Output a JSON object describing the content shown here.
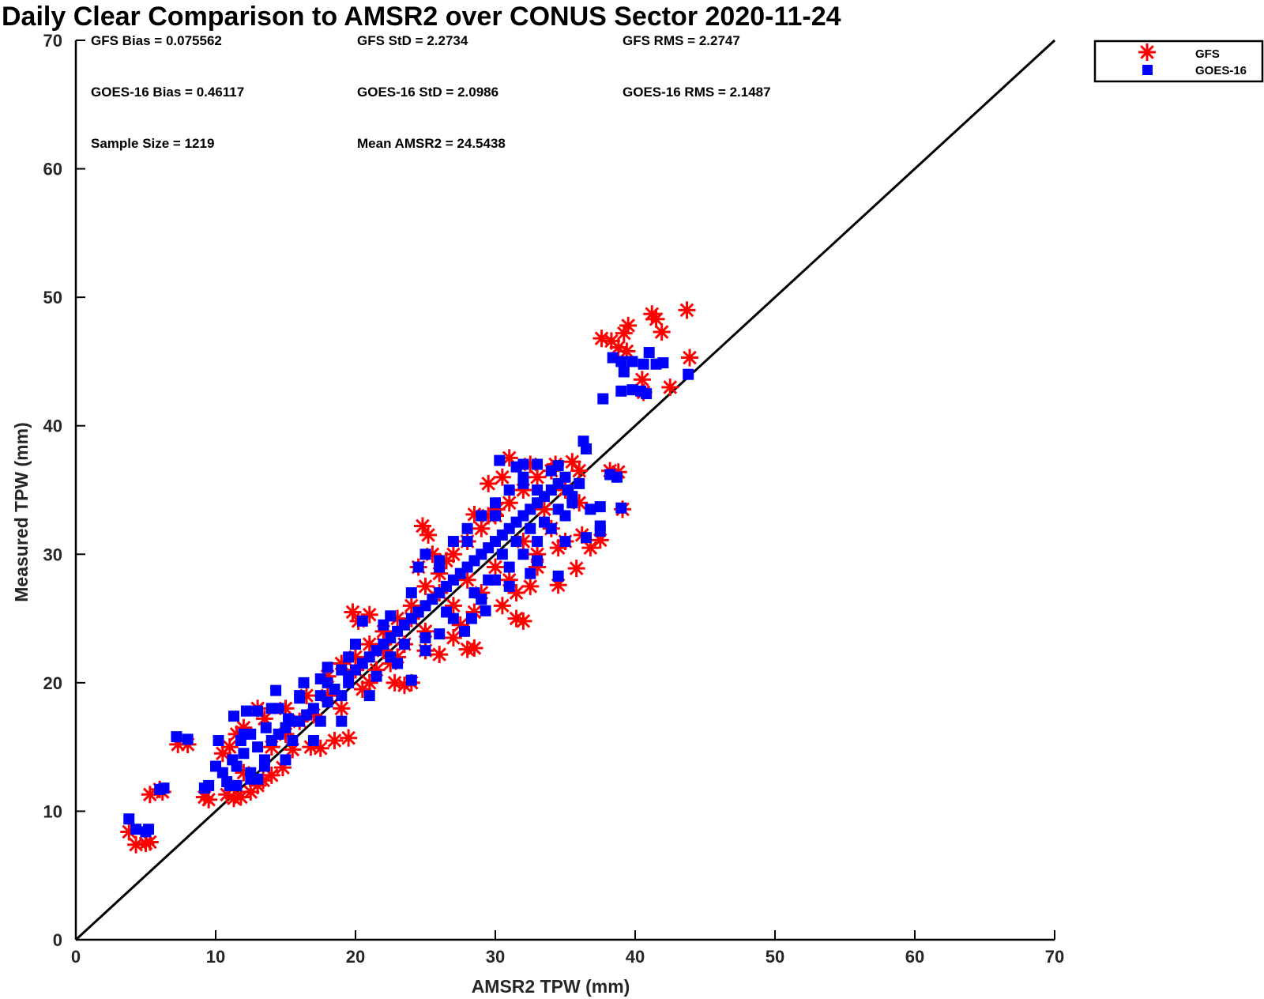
{
  "chart_data": {
    "type": "scatter",
    "title": "Daily Clear Comparison to AMSR2 over CONUS Sector 2020-11-24",
    "xlabel": "AMSR2 TPW (mm)",
    "ylabel": "Measured TPW (mm)",
    "xlim": [
      0,
      70
    ],
    "ylim": [
      0,
      70
    ],
    "xticks": [
      0,
      10,
      20,
      30,
      40,
      50,
      60,
      70
    ],
    "yticks": [
      0,
      10,
      20,
      30,
      40,
      50,
      60,
      70
    ],
    "grid": false,
    "legend_position": "top-right-outside",
    "reference_line": "y = x",
    "stats": [
      {
        "id": "gfs-bias",
        "text": "GFS Bias = 0.075562"
      },
      {
        "id": "gfs-std",
        "text": "GFS StD = 2.2734"
      },
      {
        "id": "gfs-rms",
        "text": "GFS RMS = 2.2747"
      },
      {
        "id": "goes-bias",
        "text": "GOES-16 Bias = 0.46117"
      },
      {
        "id": "goes-std",
        "text": "GOES-16 StD = 2.0986"
      },
      {
        "id": "goes-rms",
        "text": "GOES-16 RMS = 2.1487"
      },
      {
        "id": "sample-size",
        "text": "Sample Size = 1219"
      },
      {
        "id": "mean-amsr2",
        "text": "Mean AMSR2 = 24.5438"
      }
    ],
    "series": [
      {
        "name": "GFS",
        "marker": "asterisk",
        "color": "#ff0000",
        "points": [
          [
            3.8,
            8.4
          ],
          [
            4.3,
            7.4
          ],
          [
            5,
            7.5
          ],
          [
            5.3,
            7.6
          ],
          [
            5.3,
            11.3
          ],
          [
            6,
            11.7
          ],
          [
            6.2,
            11.5
          ],
          [
            7.3,
            15.2
          ],
          [
            8,
            15.2
          ],
          [
            9.2,
            11.1
          ],
          [
            9.5,
            10.9
          ],
          [
            10.8,
            11.3
          ],
          [
            11.3,
            11
          ],
          [
            11.8,
            11.1
          ],
          [
            12.5,
            11.5
          ],
          [
            13,
            12
          ],
          [
            13.4,
            12.4
          ],
          [
            14,
            12.8
          ],
          [
            14.8,
            13.4
          ],
          [
            15.5,
            14.8
          ],
          [
            16.8,
            15
          ],
          [
            17.5,
            14.9
          ],
          [
            18.5,
            15.5
          ],
          [
            19.5,
            15.7
          ],
          [
            19.8,
            25.5
          ],
          [
            20.2,
            24.8
          ],
          [
            21,
            25.3
          ],
          [
            22,
            22.5
          ],
          [
            22.8,
            20
          ],
          [
            23.5,
            19.8
          ],
          [
            24,
            20
          ],
          [
            24.8,
            32.2
          ],
          [
            25.2,
            31.5
          ],
          [
            25,
            22.5
          ],
          [
            26,
            22.2
          ],
          [
            27,
            23.5
          ],
          [
            28,
            22.6
          ],
          [
            28.5,
            22.7
          ],
          [
            28.5,
            33.1
          ],
          [
            29.5,
            33
          ],
          [
            30.1,
            33.5
          ],
          [
            31,
            37.5
          ],
          [
            31.5,
            25
          ],
          [
            32,
            24.8
          ],
          [
            32.5,
            27.5
          ],
          [
            34.5,
            27.6
          ],
          [
            34.3,
            37
          ],
          [
            35.5,
            37.2
          ],
          [
            35.8,
            28.9
          ],
          [
            36.2,
            31.5
          ],
          [
            36.8,
            30.5
          ],
          [
            37.5,
            31.1
          ],
          [
            38.2,
            36.5
          ],
          [
            38.8,
            36.4
          ],
          [
            39.1,
            33.5
          ],
          [
            37.6,
            46.8
          ],
          [
            38.3,
            46.6
          ],
          [
            38.8,
            46.1
          ],
          [
            39.2,
            47.2
          ],
          [
            39.5,
            47.8
          ],
          [
            39.4,
            45.8
          ],
          [
            40.5,
            43.6
          ],
          [
            40.6,
            42.6
          ],
          [
            41.2,
            48.7
          ],
          [
            41.5,
            48.3
          ],
          [
            41.9,
            47.3
          ],
          [
            42.5,
            43
          ],
          [
            43.7,
            49
          ],
          [
            43.9,
            45.3
          ],
          [
            10.5,
            14.5
          ],
          [
            11,
            15
          ],
          [
            12,
            16.5
          ],
          [
            13.5,
            17.2
          ],
          [
            15,
            18
          ],
          [
            16.5,
            19
          ],
          [
            18,
            20.5
          ],
          [
            19,
            21.5
          ],
          [
            20,
            22
          ],
          [
            21,
            23
          ],
          [
            22,
            24
          ],
          [
            23,
            25
          ],
          [
            24,
            26
          ],
          [
            25,
            27.5
          ],
          [
            26,
            28.5
          ],
          [
            27,
            30
          ],
          [
            28,
            31
          ],
          [
            29,
            32
          ],
          [
            30,
            33
          ],
          [
            31,
            34
          ],
          [
            32,
            35
          ],
          [
            33,
            36
          ],
          [
            34,
            36.5
          ],
          [
            12,
            13
          ],
          [
            14,
            15
          ],
          [
            16,
            17
          ],
          [
            18,
            19
          ],
          [
            20,
            21
          ],
          [
            22,
            23
          ],
          [
            24,
            25
          ],
          [
            26,
            27
          ],
          [
            28,
            28
          ],
          [
            30,
            29
          ],
          [
            32,
            31
          ],
          [
            34,
            32
          ],
          [
            36,
            34
          ],
          [
            11.5,
            16
          ],
          [
            13,
            18
          ],
          [
            15,
            16
          ],
          [
            17,
            17.5
          ],
          [
            19,
            18
          ],
          [
            21,
            20
          ],
          [
            23,
            22
          ],
          [
            25,
            24
          ],
          [
            27,
            26
          ],
          [
            29,
            27
          ],
          [
            31,
            28
          ],
          [
            33,
            29
          ],
          [
            35,
            31
          ],
          [
            24.5,
            29
          ],
          [
            25.5,
            30
          ],
          [
            26.5,
            29.5
          ],
          [
            29.5,
            35.5
          ],
          [
            30.5,
            36
          ],
          [
            32.5,
            37
          ],
          [
            33.5,
            33.5
          ],
          [
            35,
            35
          ],
          [
            36,
            36.5
          ],
          [
            20.5,
            19.5
          ],
          [
            21.5,
            21
          ],
          [
            22.5,
            21.5
          ],
          [
            23.5,
            23
          ],
          [
            27.5,
            24.5
          ],
          [
            28.5,
            25.5
          ],
          [
            30.5,
            26
          ],
          [
            31.5,
            27
          ],
          [
            33,
            30
          ],
          [
            34.5,
            30.5
          ]
        ]
      },
      {
        "name": "GOES-16",
        "marker": "square",
        "color": "#0000ff",
        "points": [
          [
            3.8,
            9.4
          ],
          [
            4.3,
            8.6
          ],
          [
            5,
            8.4
          ],
          [
            5.2,
            8.6
          ],
          [
            6,
            11.7
          ],
          [
            6.3,
            11.8
          ],
          [
            7.2,
            15.8
          ],
          [
            8,
            15.6
          ],
          [
            9.2,
            11.8
          ],
          [
            9.5,
            12
          ],
          [
            10,
            13.5
          ],
          [
            10.2,
            15.5
          ],
          [
            10.8,
            12.3
          ],
          [
            11.2,
            14
          ],
          [
            11.3,
            17.4
          ],
          [
            11.8,
            15.5
          ],
          [
            12.2,
            17.8
          ],
          [
            12.5,
            16
          ],
          [
            13,
            17.8
          ],
          [
            13.6,
            16.5
          ],
          [
            14.3,
            19.4
          ],
          [
            14.5,
            18
          ],
          [
            15.2,
            17.2
          ],
          [
            16,
            18.8
          ],
          [
            16.3,
            20
          ],
          [
            17.5,
            20.3
          ],
          [
            18,
            21.2
          ],
          [
            19,
            21
          ],
          [
            19.5,
            20
          ],
          [
            20.5,
            24.8
          ],
          [
            22.5,
            25.2
          ],
          [
            24,
            20.2
          ],
          [
            25,
            23.5
          ],
          [
            26,
            23.8
          ],
          [
            27.8,
            24
          ],
          [
            28.3,
            25
          ],
          [
            29.3,
            25.6
          ],
          [
            29,
            26.5
          ],
          [
            30.3,
            37.3
          ],
          [
            31.5,
            36.8
          ],
          [
            32,
            37
          ],
          [
            33,
            37
          ],
          [
            34.5,
            36.9
          ],
          [
            35.2,
            35
          ],
          [
            35.5,
            34
          ],
          [
            36.3,
            38.8
          ],
          [
            36.5,
            38.2
          ],
          [
            36.8,
            33.5
          ],
          [
            36.5,
            31.3
          ],
          [
            37.5,
            33.7
          ],
          [
            37.5,
            31.8
          ],
          [
            37.5,
            32.2
          ],
          [
            38.2,
            36.2
          ],
          [
            38.7,
            36
          ],
          [
            39,
            33.6
          ],
          [
            34.5,
            28.3
          ],
          [
            32.5,
            28.5
          ],
          [
            37.7,
            42.1
          ],
          [
            38.4,
            45.3
          ],
          [
            39,
            45
          ],
          [
            39.2,
            44.2
          ],
          [
            39.8,
            45
          ],
          [
            40.6,
            44.8
          ],
          [
            41,
            45.7
          ],
          [
            41.5,
            44.8
          ],
          [
            42,
            44.9
          ],
          [
            39,
            42.7
          ],
          [
            39.8,
            42.8
          ],
          [
            40.4,
            42.7
          ],
          [
            40.8,
            42.5
          ],
          [
            43.8,
            44
          ],
          [
            10.5,
            13
          ],
          [
            11,
            12
          ],
          [
            11.5,
            13.5
          ],
          [
            12,
            14.5
          ],
          [
            12.5,
            13
          ],
          [
            13,
            15
          ],
          [
            13.5,
            14
          ],
          [
            14,
            15.5
          ],
          [
            14.5,
            16
          ],
          [
            15,
            16.5
          ],
          [
            15.5,
            15.5
          ],
          [
            16,
            17
          ],
          [
            16.5,
            17.5
          ],
          [
            17,
            18
          ],
          [
            17.5,
            17
          ],
          [
            18,
            18.5
          ],
          [
            18.5,
            19.5
          ],
          [
            19,
            19
          ],
          [
            19.5,
            20.5
          ],
          [
            20,
            21
          ],
          [
            20.5,
            21.5
          ],
          [
            21,
            22
          ],
          [
            21.5,
            22.5
          ],
          [
            22,
            23
          ],
          [
            22.5,
            23.5
          ],
          [
            23,
            24
          ],
          [
            23.5,
            24.5
          ],
          [
            24,
            25
          ],
          [
            24.5,
            25.5
          ],
          [
            25,
            26
          ],
          [
            25.5,
            26.5
          ],
          [
            26,
            27
          ],
          [
            26.5,
            27.5
          ],
          [
            27,
            28
          ],
          [
            27.5,
            28.5
          ],
          [
            28,
            29
          ],
          [
            28.5,
            29.5
          ],
          [
            29,
            30
          ],
          [
            29.5,
            30.5
          ],
          [
            30,
            31
          ],
          [
            30.5,
            31.5
          ],
          [
            31,
            32
          ],
          [
            31.5,
            32.5
          ],
          [
            32,
            33
          ],
          [
            32.5,
            33.5
          ],
          [
            33,
            34
          ],
          [
            33.5,
            34.5
          ],
          [
            34,
            35
          ],
          [
            34.5,
            35.5
          ],
          [
            35,
            36
          ],
          [
            12,
            16
          ],
          [
            14,
            18
          ],
          [
            16,
            19
          ],
          [
            18,
            20
          ],
          [
            20,
            23
          ],
          [
            22,
            24.5
          ],
          [
            24,
            27
          ],
          [
            26,
            29
          ],
          [
            28,
            31
          ],
          [
            30,
            33
          ],
          [
            32,
            35.5
          ],
          [
            34,
            36.5
          ],
          [
            13,
            12.5
          ],
          [
            15,
            14
          ],
          [
            17,
            15.5
          ],
          [
            19,
            17
          ],
          [
            21,
            19
          ],
          [
            23,
            21.5
          ],
          [
            25,
            22.5
          ],
          [
            27,
            25
          ],
          [
            29,
            26.5
          ],
          [
            31,
            27.5
          ],
          [
            33,
            29.5
          ],
          [
            35,
            31
          ],
          [
            24.5,
            29
          ],
          [
            25,
            30
          ],
          [
            26,
            29.5
          ],
          [
            27,
            31
          ],
          [
            28,
            32
          ],
          [
            29,
            33
          ],
          [
            30,
            34
          ],
          [
            31,
            35
          ],
          [
            32,
            36
          ],
          [
            33,
            35
          ],
          [
            30,
            28
          ],
          [
            31,
            29
          ],
          [
            32,
            30
          ],
          [
            33,
            31
          ],
          [
            34,
            32
          ],
          [
            35,
            33
          ],
          [
            11.5,
            12
          ],
          [
            12.5,
            12.5
          ],
          [
            13.5,
            13.5
          ],
          [
            15.5,
            17
          ],
          [
            17.5,
            19
          ],
          [
            19.5,
            22
          ],
          [
            21.5,
            20.5
          ],
          [
            22.5,
            22
          ],
          [
            23.5,
            23
          ],
          [
            26.5,
            25.5
          ],
          [
            28.5,
            27
          ],
          [
            29.5,
            28
          ],
          [
            30.5,
            30
          ],
          [
            31.5,
            31
          ],
          [
            32.5,
            32
          ],
          [
            33.5,
            32.5
          ],
          [
            34.5,
            33.5
          ],
          [
            35.5,
            34.5
          ],
          [
            36,
            35.5
          ]
        ]
      }
    ]
  }
}
